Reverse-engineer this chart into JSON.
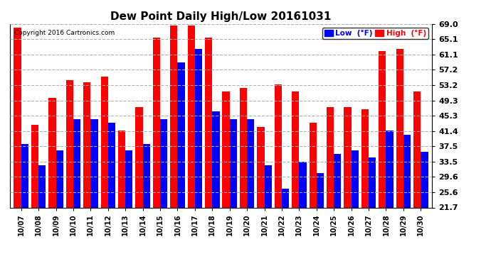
{
  "title": "Dew Point Daily High/Low 20161031",
  "copyright": "Copyright 2016 Cartronics.com",
  "dates": [
    "10/07",
    "10/08",
    "10/09",
    "10/10",
    "10/11",
    "10/12",
    "10/13",
    "10/14",
    "10/15",
    "10/16",
    "10/17",
    "10/18",
    "10/19",
    "10/20",
    "10/21",
    "10/22",
    "10/23",
    "10/24",
    "10/25",
    "10/26",
    "10/27",
    "10/28",
    "10/29",
    "10/30"
  ],
  "high": [
    68.0,
    43.0,
    50.0,
    54.5,
    54.0,
    55.5,
    41.5,
    47.5,
    65.5,
    68.5,
    68.5,
    65.5,
    51.5,
    52.5,
    42.5,
    53.5,
    51.5,
    43.5,
    47.5,
    47.5,
    47.0,
    62.0,
    62.5,
    51.5
  ],
  "low": [
    38.0,
    32.5,
    36.5,
    44.5,
    44.5,
    43.5,
    36.5,
    38.0,
    44.5,
    59.0,
    62.5,
    46.5,
    44.5,
    44.5,
    32.5,
    26.5,
    33.5,
    30.5,
    35.5,
    36.5,
    34.5,
    41.5,
    40.5,
    36.0
  ],
  "ylim_min": 21.7,
  "ylim_max": 69.0,
  "yticks": [
    21.7,
    25.6,
    29.6,
    33.5,
    37.5,
    41.4,
    45.3,
    49.3,
    53.2,
    57.2,
    61.1,
    65.1,
    69.0
  ],
  "ytick_labels": [
    "21.7",
    "25.6",
    "29.6",
    "33.5",
    "37.5",
    "41.4",
    "45.3",
    "49.3",
    "53.2",
    "57.2",
    "61.1",
    "65.1",
    "69.0"
  ],
  "high_color": "#ff0000",
  "low_color": "#0000ff",
  "bg_color": "#ffffff",
  "grid_color": "#b0b0b0",
  "title_fontsize": 11,
  "legend_low_label": "Low  (°F)",
  "legend_high_label": "High  (°F)"
}
